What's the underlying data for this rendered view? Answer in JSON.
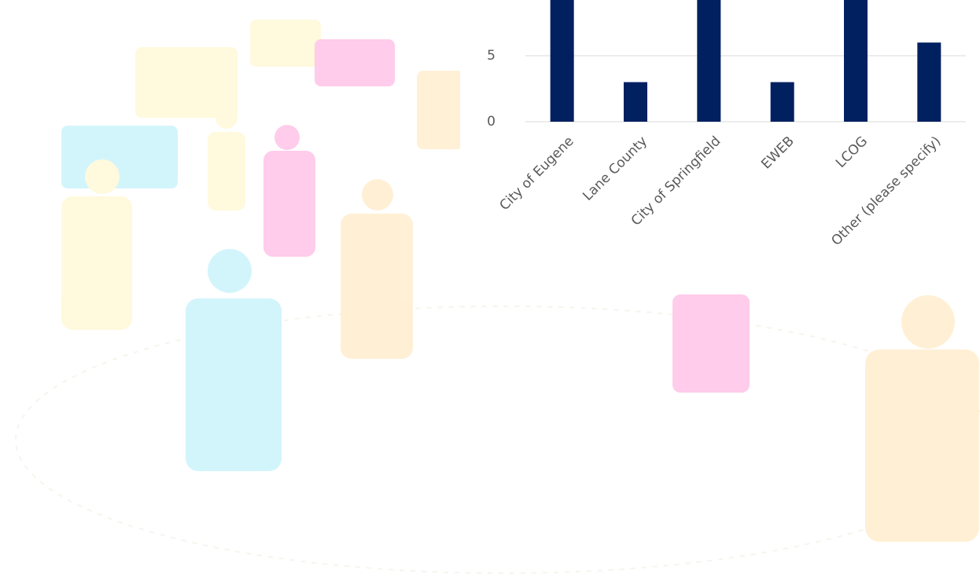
{
  "chart_data": {
    "type": "bar",
    "categories": [
      "City of Eugene",
      "Lane County",
      "City of Springfield",
      "EWEB",
      "LCOG",
      "Other (please specify)"
    ],
    "values": [
      10,
      3,
      10,
      3,
      10,
      6
    ],
    "color": "#002060",
    "ylim": [
      0,
      10
    ],
    "yticks": [
      0,
      5
    ],
    "grid": true
  }
}
